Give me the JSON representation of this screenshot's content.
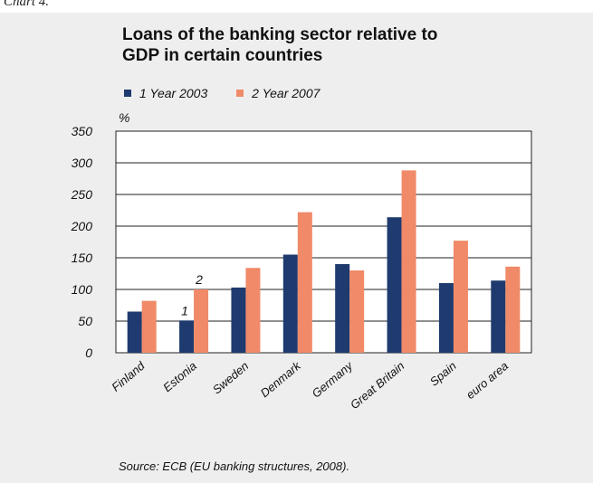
{
  "caption": "Chart 4.",
  "source": "Source: ECB (EU banking structures, 2008).",
  "colors": {
    "panel_bg": "#eeeeee",
    "series_1": "#1f3a6e",
    "series_2": "#f08a68"
  },
  "chart_data": {
    "type": "bar",
    "title": "Loans of the banking sector relative to GDP in certain countries",
    "title_lines": [
      "Loans of the banking sector relative to",
      "GDP in certain countries"
    ],
    "ylabel": "%",
    "xlabel": "",
    "ylim": [
      0,
      350
    ],
    "yticks": [
      0,
      50,
      100,
      150,
      200,
      250,
      300,
      350
    ],
    "grid": true,
    "legend_position": "top",
    "categories": [
      "Finland",
      "Estonia",
      "Sweden",
      "Denmark",
      "Germany",
      "Great Britain",
      "Spain",
      "euro area"
    ],
    "series": [
      {
        "name": "Year 2003",
        "legend_label": "1  Year 2003",
        "color": "#1f3a6e",
        "values": [
          65,
          51,
          103,
          155,
          140,
          214,
          110,
          114
        ]
      },
      {
        "name": "Year 2007",
        "legend_label": "2  Year 2007",
        "color": "#f08a68",
        "values": [
          82,
          100,
          134,
          222,
          130,
          288,
          177,
          136
        ]
      }
    ],
    "annotations": [
      {
        "text": "1",
        "category": "Estonia",
        "series": 0
      },
      {
        "text": "2",
        "category": "Estonia",
        "series": 1
      }
    ]
  }
}
